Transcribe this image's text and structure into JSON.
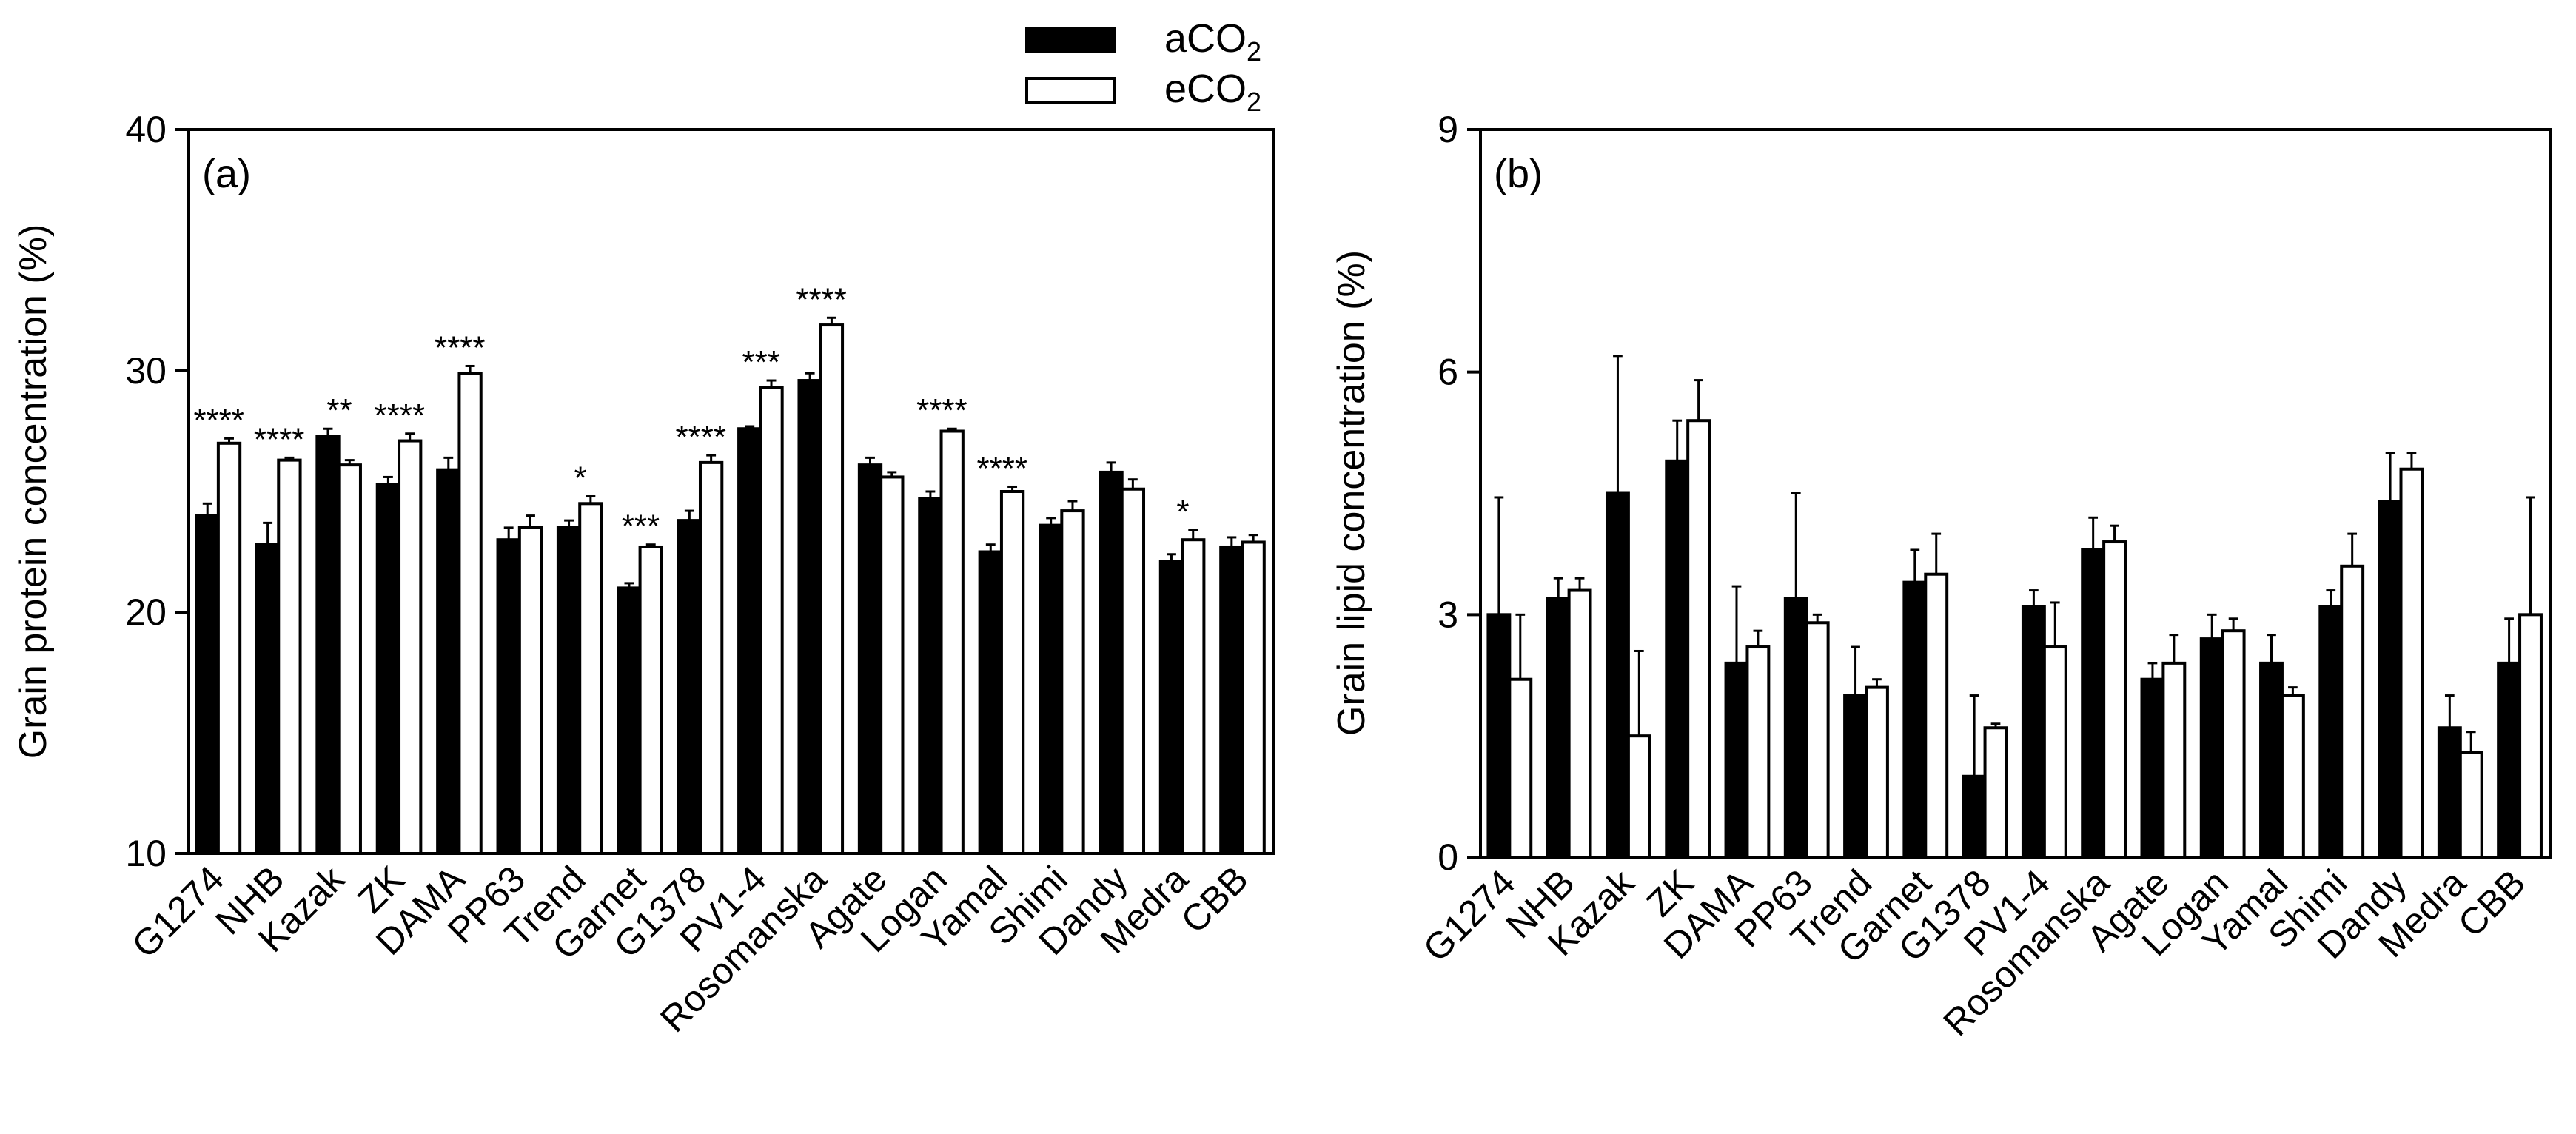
{
  "legend": {
    "series": [
      {
        "main": "aCO",
        "sub": "2",
        "fill": "#000000"
      },
      {
        "main": "eCO",
        "sub": "2",
        "fill": "#ffffff"
      }
    ]
  },
  "chart_data": [
    {
      "type": "bar",
      "panel_label": "(a)",
      "ylabel": "Grain protein concentration (%)",
      "ylim": [
        10,
        40
      ],
      "yticks": [
        "10",
        "20",
        "30",
        "40"
      ],
      "categories": [
        "G1274",
        "NHB",
        "Kazak",
        "ZK",
        "DAMA",
        "PP63",
        "Trend",
        "Garnet",
        "G1378",
        "PV1-4",
        "Rosomanska",
        "Agate",
        "Logan",
        "Yamal",
        "Shimi",
        "Dandy",
        "Medra",
        "CBB"
      ],
      "series": [
        {
          "name": "aCO2",
          "color": "#000000",
          "values": [
            24.0,
            22.8,
            27.3,
            25.3,
            25.9,
            23.0,
            23.5,
            21.0,
            23.8,
            27.6,
            29.6,
            26.1,
            24.7,
            22.5,
            23.6,
            25.8,
            22.1,
            22.7
          ],
          "errors": [
            0.5,
            0.9,
            0.3,
            0.3,
            0.5,
            0.5,
            0.3,
            0.2,
            0.4,
            0.1,
            0.3,
            0.3,
            0.3,
            0.3,
            0.3,
            0.4,
            0.3,
            0.4
          ]
        },
        {
          "name": "eCO2",
          "color": "#ffffff",
          "values": [
            27.0,
            26.3,
            26.1,
            27.1,
            29.9,
            23.5,
            24.5,
            22.7,
            26.2,
            29.3,
            31.9,
            25.6,
            27.5,
            25.0,
            24.2,
            25.1,
            23.0,
            22.9
          ],
          "errors": [
            0.2,
            0.1,
            0.2,
            0.3,
            0.3,
            0.5,
            0.3,
            0.1,
            0.3,
            0.3,
            0.3,
            0.2,
            0.1,
            0.2,
            0.4,
            0.4,
            0.4,
            0.3
          ]
        }
      ],
      "significance": [
        "****",
        "****",
        "**",
        "****",
        "****",
        "",
        "*",
        "***",
        "****",
        "***",
        "****",
        "",
        "****",
        "****",
        "",
        "",
        "*",
        ""
      ]
    },
    {
      "type": "bar",
      "panel_label": "(b)",
      "ylabel": "Grain lipid concentration (%)",
      "ylim": [
        0,
        9
      ],
      "yticks": [
        "0",
        "3",
        "6",
        "9"
      ],
      "categories": [
        "G1274",
        "NHB",
        "Kazak",
        "ZK",
        "DAMA",
        "PP63",
        "Trend",
        "Garnet",
        "G1378",
        "PV1-4",
        "Rosomanska",
        "Agate",
        "Logan",
        "Yamal",
        "Shimi",
        "Dandy",
        "Medra",
        "CBB"
      ],
      "series": [
        {
          "name": "aCO2",
          "color": "#000000",
          "values": [
            3.0,
            3.2,
            4.5,
            4.9,
            2.4,
            3.2,
            2.0,
            3.4,
            1.0,
            3.1,
            3.8,
            2.2,
            2.7,
            2.4,
            3.1,
            4.4,
            1.6,
            2.4
          ],
          "errors": [
            1.45,
            0.25,
            1.7,
            0.5,
            0.95,
            1.3,
            0.6,
            0.4,
            1.0,
            0.2,
            0.4,
            0.2,
            0.3,
            0.35,
            0.2,
            0.6,
            0.4,
            0.55
          ]
        },
        {
          "name": "eCO2",
          "color": "#ffffff",
          "values": [
            2.2,
            3.3,
            1.5,
            5.4,
            2.6,
            2.9,
            2.1,
            3.5,
            1.6,
            2.6,
            3.9,
            2.4,
            2.8,
            2.0,
            3.6,
            4.8,
            1.3,
            3.0
          ],
          "errors": [
            0.8,
            0.15,
            1.05,
            0.5,
            0.2,
            0.1,
            0.1,
            0.5,
            0.05,
            0.55,
            0.2,
            0.35,
            0.15,
            0.1,
            0.4,
            0.2,
            0.25,
            1.45
          ]
        }
      ]
    }
  ]
}
